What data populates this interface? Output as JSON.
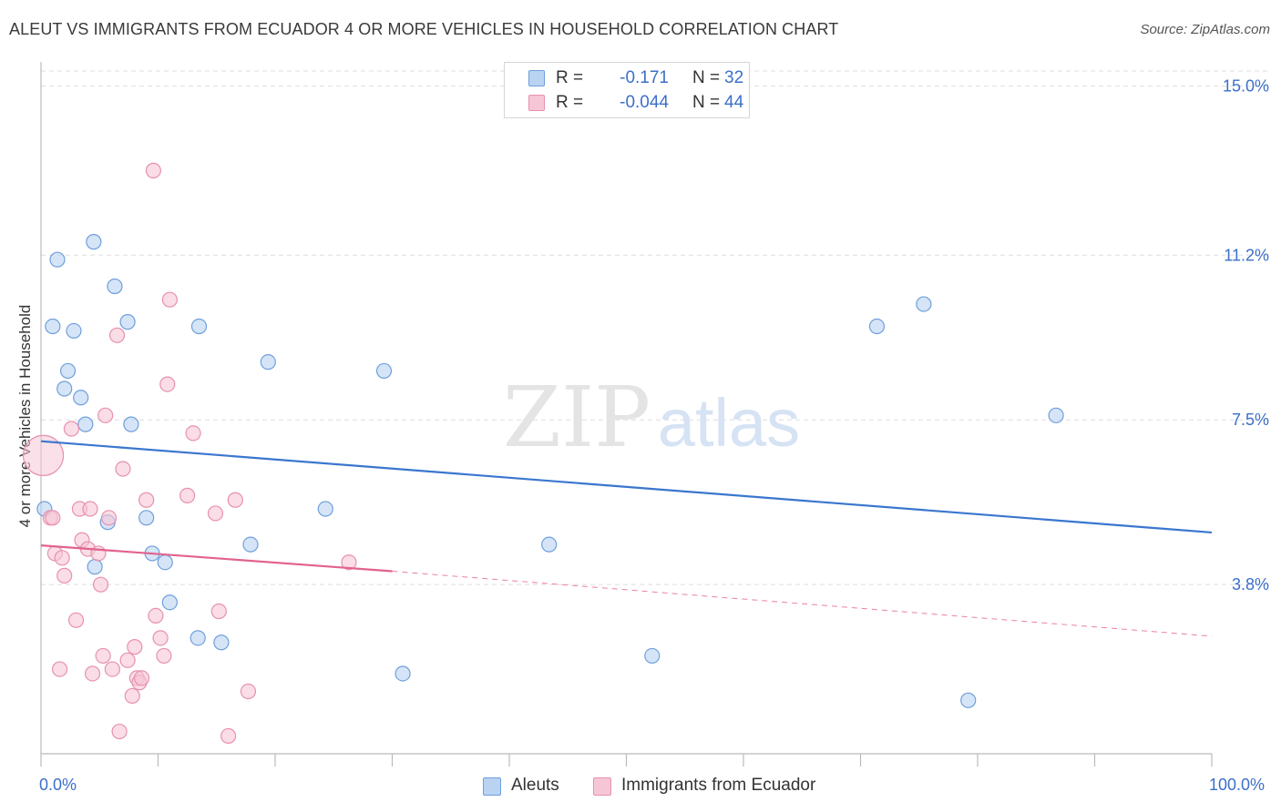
{
  "title": "ALEUT VS IMMIGRANTS FROM ECUADOR 4 OR MORE VEHICLES IN HOUSEHOLD CORRELATION CHART",
  "source": "Source: ZipAtlas.com",
  "watermark": {
    "zip": "ZIP",
    "atlas": "atlas"
  },
  "legend": {
    "rows": [
      {
        "r_label": "R =",
        "r_value": "-0.171",
        "n_label": "N =",
        "n_value": "32"
      },
      {
        "r_label": "R =",
        "r_value": "-0.044",
        "n_label": "N =",
        "n_value": "44"
      }
    ]
  },
  "colors": {
    "blue_fill": "#b9d3f2",
    "blue_stroke": "#6f9fdc",
    "blue_line": "#3a76cf",
    "pink_fill": "#f6c6d6",
    "pink_stroke": "#e791ae",
    "pink_line": "#e2628e",
    "grid": "#dddddd",
    "axis": "#bbbbbb",
    "tick_text": "#3b6fc9"
  },
  "chart_data": {
    "type": "scatter",
    "title": "ALEUT VS IMMIGRANTS FROM ECUADOR 4 OR MORE VEHICLES IN HOUSEHOLD CORRELATION CHART",
    "xlabel": "",
    "ylabel": "4 or more Vehicles in Household",
    "xlim": [
      0,
      100
    ],
    "ylim": [
      0,
      15.5
    ],
    "x_tick_labels": [
      "0.0%",
      "100.0%"
    ],
    "y_ticks": [
      3.8,
      7.5,
      11.2,
      15.0
    ],
    "y_tick_labels": [
      "3.8%",
      "7.5%",
      "11.2%",
      "15.0%"
    ],
    "grid": true,
    "legend_position": "bottom",
    "series": [
      {
        "name": "Aleuts",
        "color": "#6f9fdc",
        "points": [
          [
            0.3,
            5.5
          ],
          [
            1.0,
            9.6
          ],
          [
            1.4,
            11.1
          ],
          [
            2.0,
            8.2
          ],
          [
            2.3,
            8.6
          ],
          [
            2.8,
            9.5
          ],
          [
            3.4,
            8.0
          ],
          [
            3.8,
            7.4
          ],
          [
            4.6,
            4.2
          ],
          [
            4.5,
            11.5
          ],
          [
            5.7,
            5.2
          ],
          [
            6.3,
            10.5
          ],
          [
            7.4,
            9.7
          ],
          [
            7.7,
            7.4
          ],
          [
            9.0,
            5.3
          ],
          [
            9.5,
            4.5
          ],
          [
            10.6,
            4.3
          ],
          [
            11.0,
            3.4
          ],
          [
            13.4,
            2.6
          ],
          [
            13.5,
            9.6
          ],
          [
            15.4,
            2.5
          ],
          [
            17.9,
            4.7
          ],
          [
            19.4,
            8.8
          ],
          [
            24.3,
            5.5
          ],
          [
            29.3,
            8.6
          ],
          [
            30.9,
            1.8
          ],
          [
            43.4,
            4.7
          ],
          [
            52.2,
            2.2
          ],
          [
            71.4,
            9.6
          ],
          [
            75.4,
            10.1
          ],
          [
            86.7,
            7.6
          ],
          [
            79.2,
            1.2
          ]
        ],
        "trend": {
          "x": [
            0,
            100
          ],
          "y": [
            7.02,
            4.97
          ]
        }
      },
      {
        "name": "Immigrants from Ecuador",
        "color": "#e791ae",
        "points": [
          [
            0.2,
            6.7
          ],
          [
            0.8,
            5.3
          ],
          [
            1.0,
            5.3
          ],
          [
            1.2,
            4.5
          ],
          [
            1.6,
            1.9
          ],
          [
            1.8,
            4.4
          ],
          [
            2.0,
            4.0
          ],
          [
            2.6,
            7.3
          ],
          [
            3.0,
            3.0
          ],
          [
            3.3,
            5.5
          ],
          [
            3.5,
            4.8
          ],
          [
            4.2,
            5.5
          ],
          [
            4.0,
            4.6
          ],
          [
            4.4,
            1.8
          ],
          [
            4.9,
            4.5
          ],
          [
            5.1,
            3.8
          ],
          [
            5.3,
            2.2
          ],
          [
            5.5,
            7.6
          ],
          [
            5.8,
            5.3
          ],
          [
            6.1,
            1.9
          ],
          [
            6.5,
            9.4
          ],
          [
            6.7,
            0.5
          ],
          [
            7.0,
            6.4
          ],
          [
            7.4,
            2.1
          ],
          [
            7.8,
            1.3
          ],
          [
            8.0,
            2.4
          ],
          [
            8.2,
            1.7
          ],
          [
            8.4,
            1.6
          ],
          [
            9.0,
            5.7
          ],
          [
            9.6,
            13.1
          ],
          [
            9.8,
            3.1
          ],
          [
            10.2,
            2.6
          ],
          [
            10.5,
            2.2
          ],
          [
            10.8,
            8.3
          ],
          [
            11.0,
            10.2
          ],
          [
            12.5,
            5.8
          ],
          [
            13.0,
            7.2
          ],
          [
            14.9,
            5.4
          ],
          [
            15.2,
            3.2
          ],
          [
            16.0,
            0.4
          ],
          [
            16.6,
            5.7
          ],
          [
            17.7,
            1.4
          ],
          [
            26.3,
            4.3
          ],
          [
            8.6,
            1.7
          ]
        ],
        "trend_solid": {
          "x": [
            0,
            30
          ],
          "y": [
            4.68,
            4.1
          ]
        },
        "trend_dashed": {
          "x": [
            30,
            100
          ],
          "y": [
            4.1,
            2.64
          ]
        }
      }
    ]
  }
}
